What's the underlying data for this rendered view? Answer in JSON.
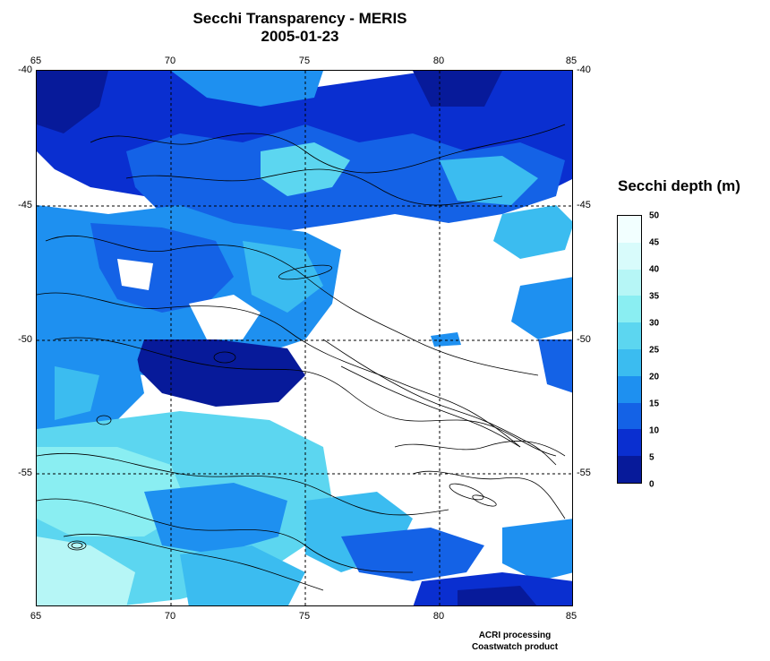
{
  "title": {
    "line1": "Secchi Transparency - MERIS",
    "line2": "2005-01-23"
  },
  "map": {
    "lon_ticks": [
      "65",
      "70",
      "75",
      "80",
      "85"
    ],
    "lat_ticks": [
      "-40",
      "-45",
      "-50",
      "-55"
    ],
    "lon_range": [
      65,
      85
    ],
    "lat_range": [
      -40,
      -60
    ],
    "grid": "dashed",
    "contours": "bathymetry"
  },
  "legend": {
    "title": "Secchi depth (m)",
    "labels": [
      "50",
      "45",
      "40",
      "35",
      "30",
      "25",
      "20",
      "15",
      "10",
      "5",
      "0"
    ],
    "bins": [
      {
        "from": 45,
        "to": 50,
        "color": "#f2ffff"
      },
      {
        "from": 40,
        "to": 45,
        "color": "#d8fbfb"
      },
      {
        "from": 35,
        "to": 40,
        "color": "#b6f6f6"
      },
      {
        "from": 30,
        "to": 35,
        "color": "#8aeef2"
      },
      {
        "from": 25,
        "to": 30,
        "color": "#5cd6f0"
      },
      {
        "from": 20,
        "to": 25,
        "color": "#3bbcf0"
      },
      {
        "from": 15,
        "to": 20,
        "color": "#1e90f0"
      },
      {
        "from": 10,
        "to": 15,
        "color": "#1462e6"
      },
      {
        "from": 5,
        "to": 10,
        "color": "#0a2fd0"
      },
      {
        "from": 0,
        "to": 5,
        "color": "#071a9a"
      }
    ]
  },
  "credits": {
    "line1": "ACRI processing",
    "line2": "Coastwatch product"
  }
}
